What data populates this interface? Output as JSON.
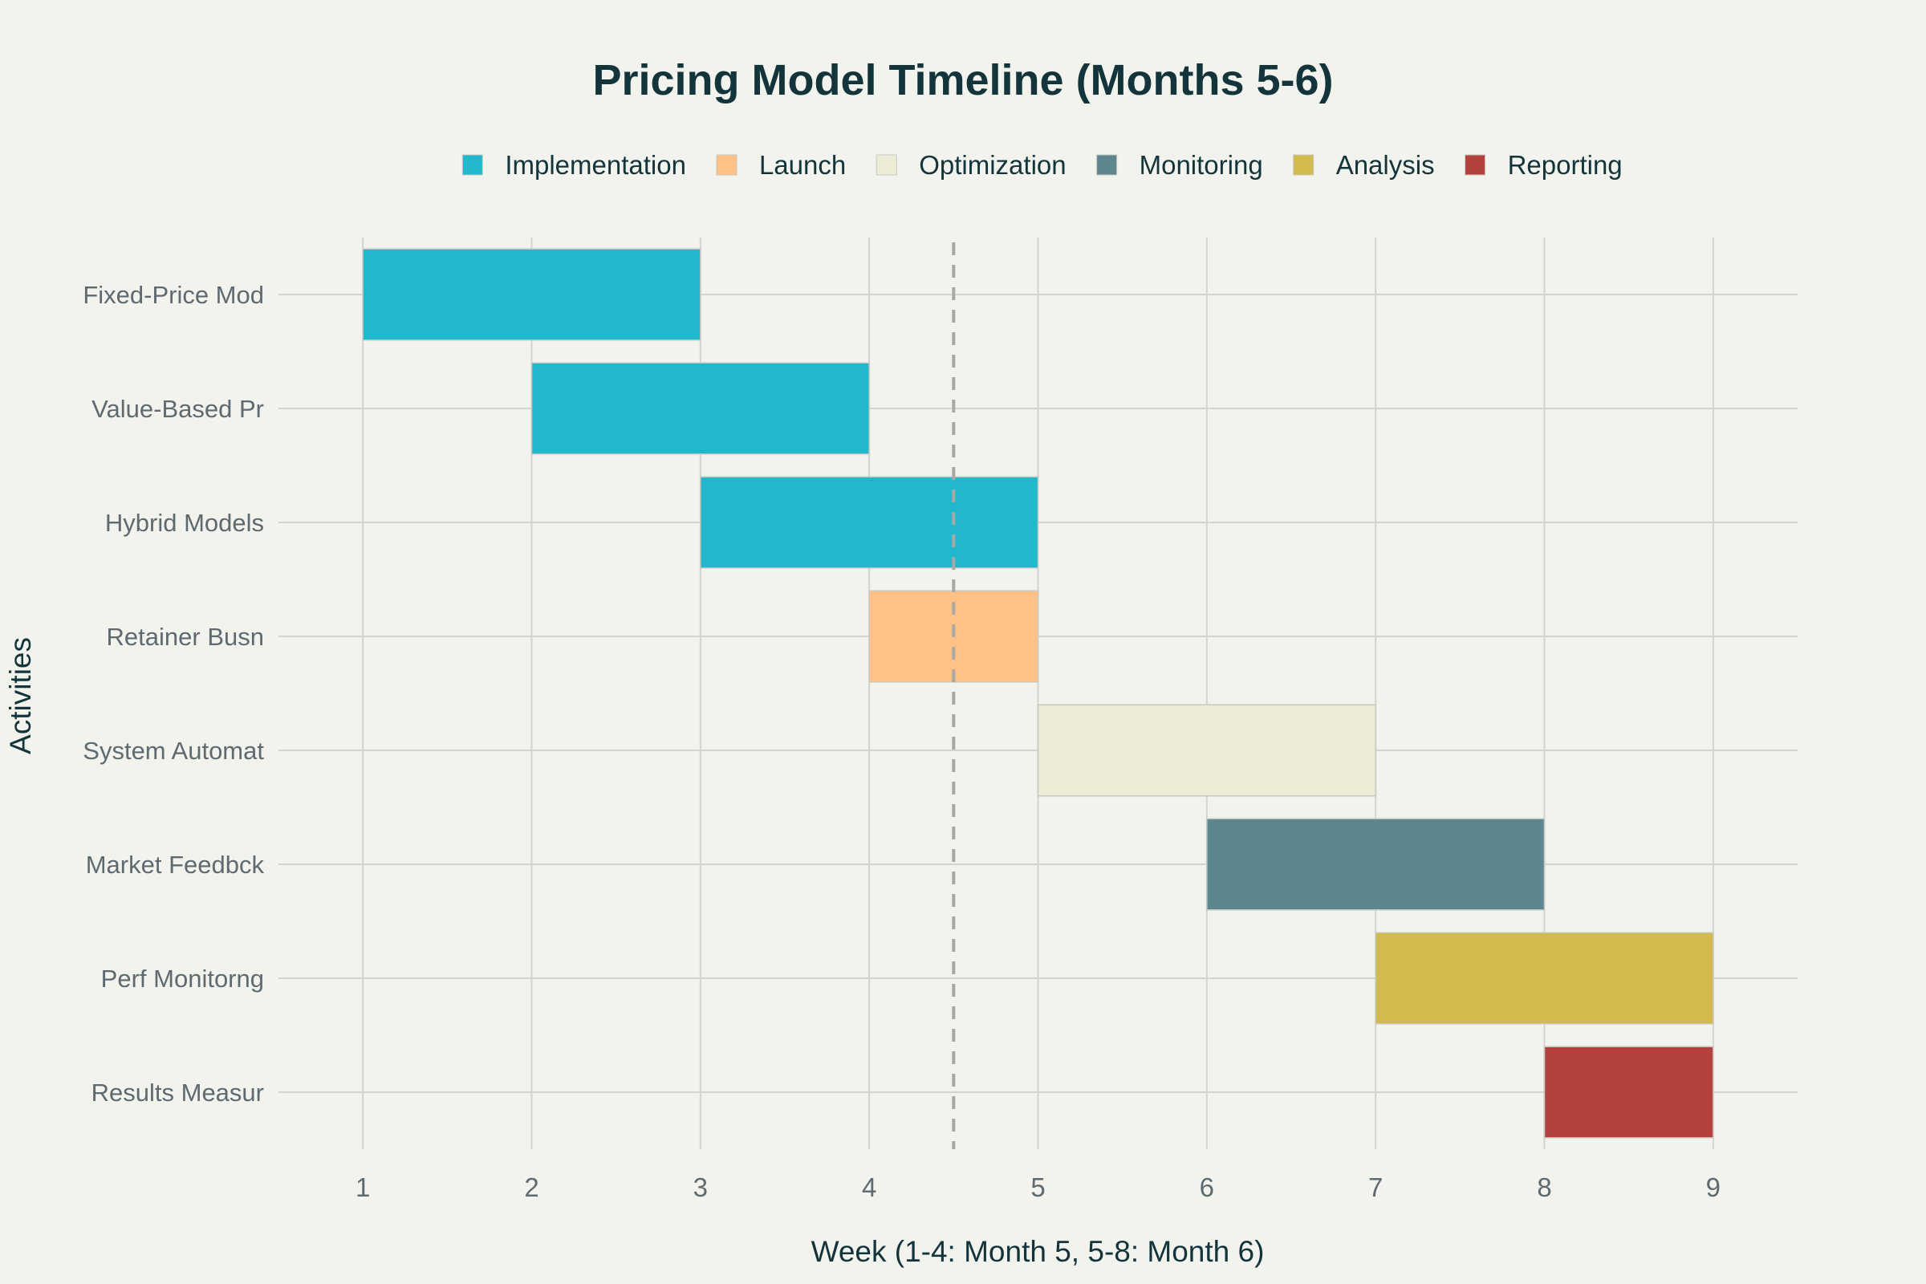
{
  "chart_data": {
    "type": "gantt",
    "title": "Pricing Model Timeline (Months 5-6)",
    "xlabel": "Week (1-4: Month 5, 5-8: Month 6)",
    "ylabel": "Activities",
    "xlim": [
      0.5,
      9.5
    ],
    "xticks": [
      1,
      2,
      3,
      4,
      5,
      6,
      7,
      8,
      9
    ],
    "marker_x": 4.5,
    "legend": [
      {
        "name": "Implementation",
        "color": "#21b8cd"
      },
      {
        "name": "Launch",
        "color": "#ffc185"
      },
      {
        "name": "Optimization",
        "color": "#ecebd5"
      },
      {
        "name": "Monitoring",
        "color": "#5d878f"
      },
      {
        "name": "Analysis",
        "color": "#d2ba4c"
      },
      {
        "name": "Reporting",
        "color": "#b4413c"
      }
    ],
    "tasks": [
      {
        "label": "Fixed-Price Mod",
        "start": 1,
        "end": 3,
        "phase": "Implementation"
      },
      {
        "label": "Value-Based Pr",
        "start": 2,
        "end": 4,
        "phase": "Implementation"
      },
      {
        "label": "Hybrid Models",
        "start": 3,
        "end": 5,
        "phase": "Implementation"
      },
      {
        "label": "Retainer Busn",
        "start": 4,
        "end": 5,
        "phase": "Launch"
      },
      {
        "label": "System Automat",
        "start": 5,
        "end": 7,
        "phase": "Optimization"
      },
      {
        "label": "Market Feedbck",
        "start": 6,
        "end": 8,
        "phase": "Monitoring"
      },
      {
        "label": "Perf Monitorng",
        "start": 7,
        "end": 9,
        "phase": "Analysis"
      },
      {
        "label": "Results Measur",
        "start": 8,
        "end": 9,
        "phase": "Reporting"
      }
    ]
  }
}
